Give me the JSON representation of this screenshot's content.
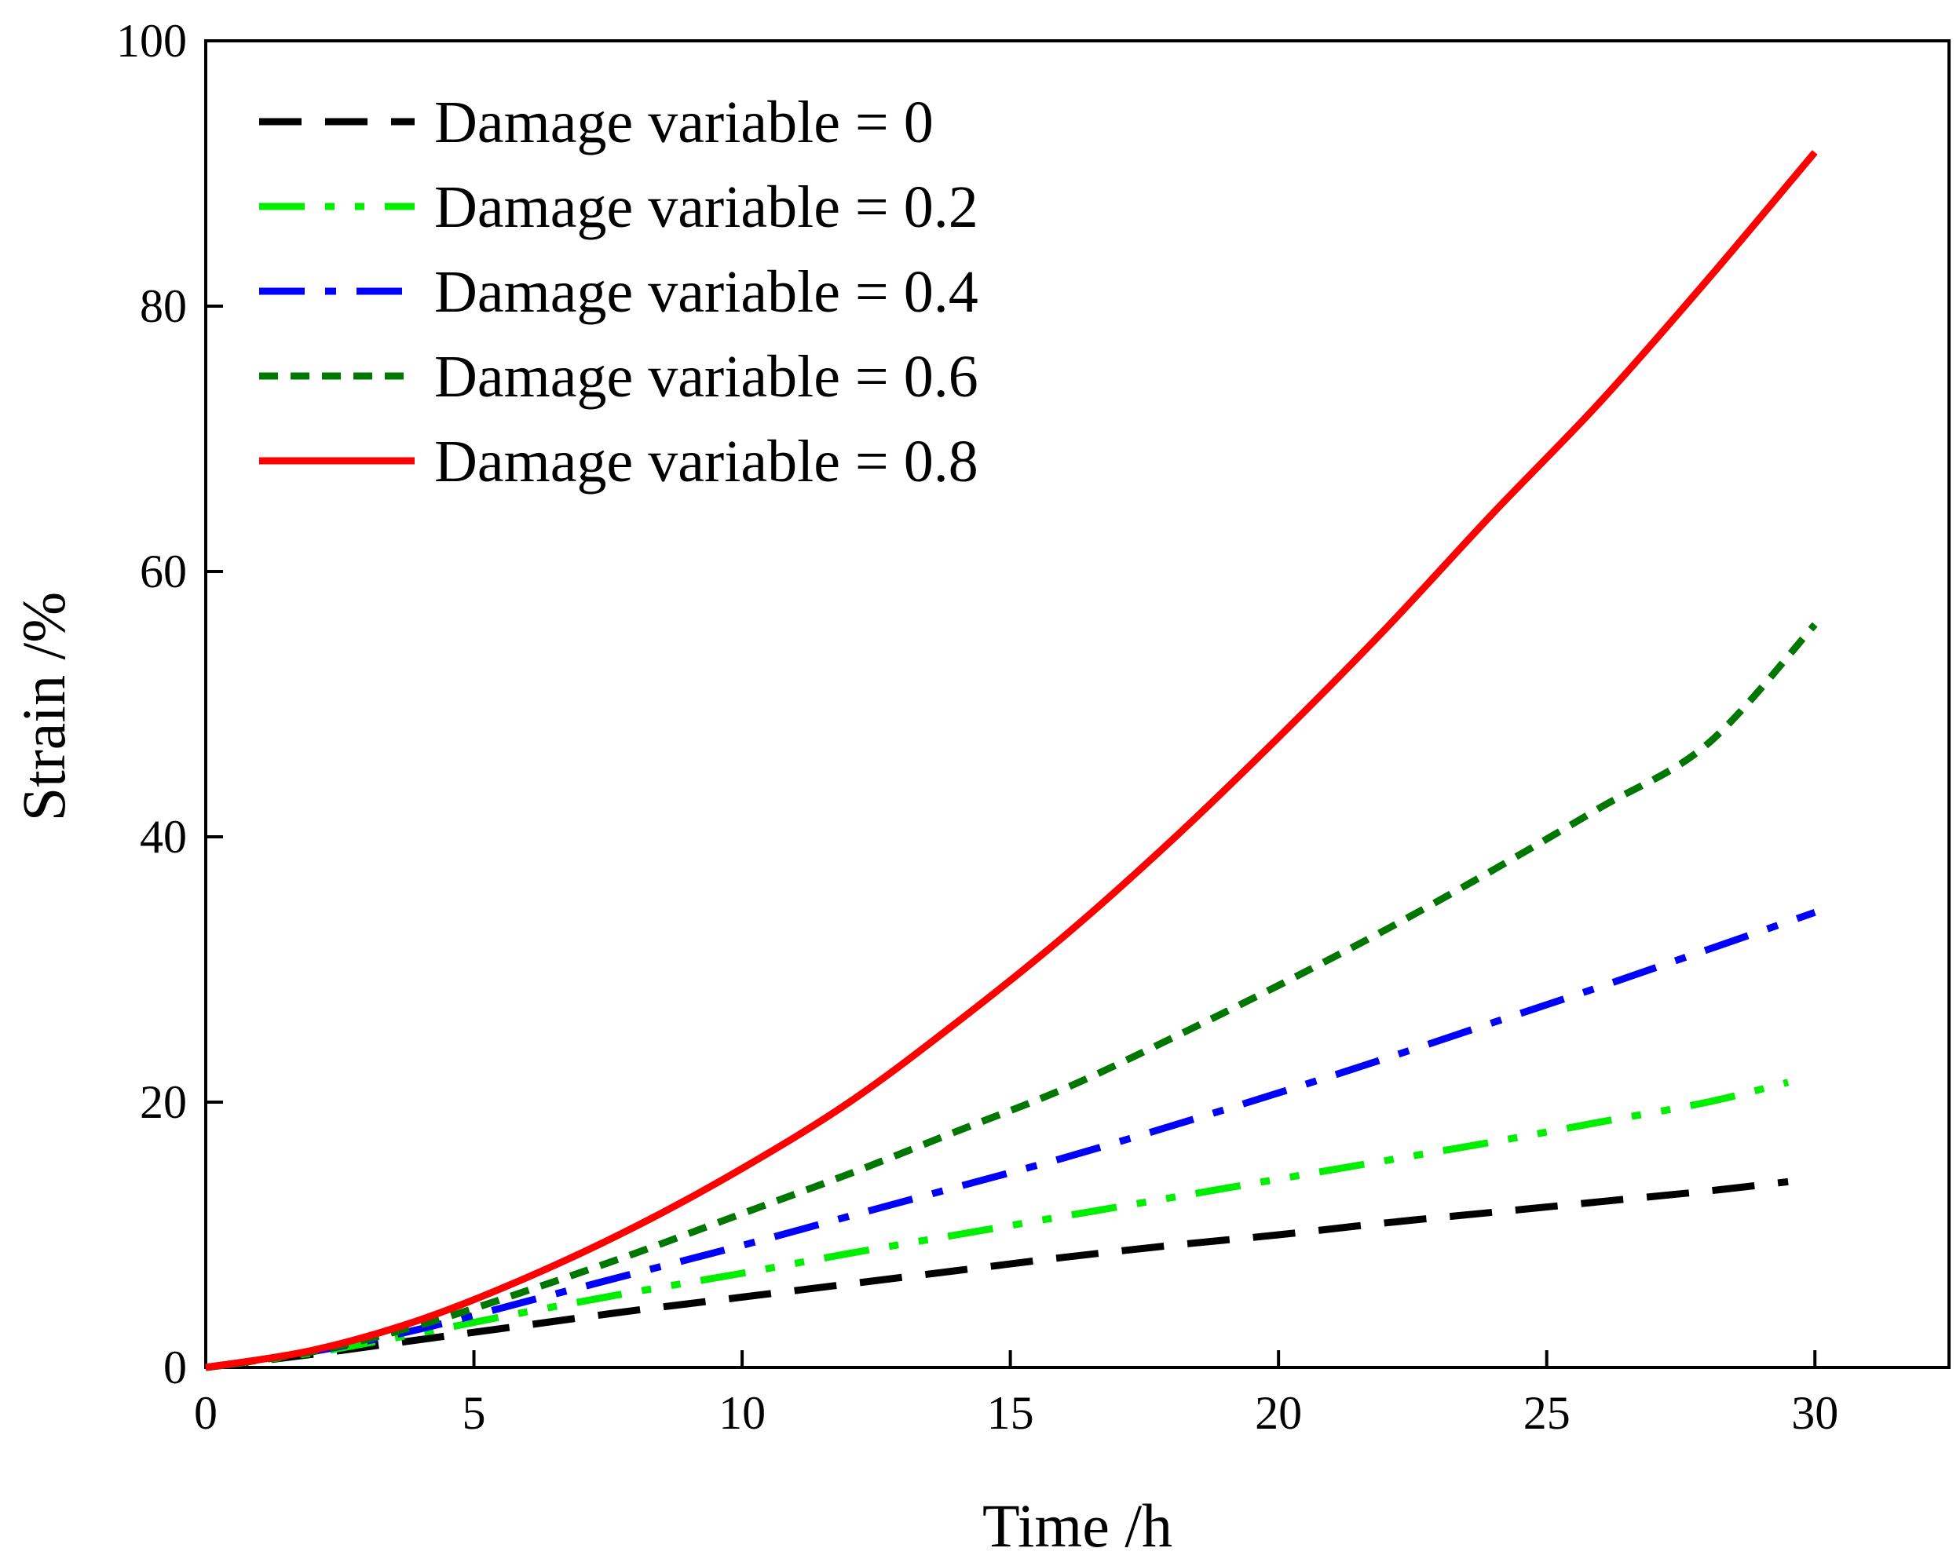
{
  "chart_data": {
    "type": "line",
    "title": "",
    "xlabel": "Time /h",
    "ylabel": "Strain /%",
    "xlim": [
      0,
      32.5
    ],
    "ylim": [
      0,
      100
    ],
    "xticks": [
      0,
      5,
      10,
      15,
      20,
      25,
      30
    ],
    "yticks": [
      0,
      20,
      40,
      60,
      80,
      100
    ],
    "xtick_labels": [
      "0",
      "5",
      "10",
      "15",
      "20",
      "25",
      "30"
    ],
    "ytick_labels": [
      "0",
      "20",
      "40",
      "60",
      "80",
      "100"
    ],
    "grid": false,
    "legend_position": "top-left",
    "series": [
      {
        "name": "Damage variable = 0",
        "color": "#000000",
        "dash": "dashed",
        "x": [
          0,
          2,
          4,
          6,
          8,
          10,
          12,
          14,
          16,
          18,
          20,
          22,
          24,
          26,
          28,
          29.5
        ],
        "y": [
          0,
          1.0,
          2.1,
          3.2,
          4.3,
          5.3,
          6.3,
          7.3,
          8.3,
          9.2,
          10.0,
          10.9,
          11.7,
          12.5,
          13.3,
          14.0
        ]
      },
      {
        "name": "Damage variable = 0.2",
        "color": "#00ee00",
        "dash": "dash-dot-dot",
        "x": [
          0,
          2,
          4,
          6,
          8,
          10,
          12,
          14,
          16,
          18,
          20,
          22,
          24,
          26,
          28,
          29.5
        ],
        "y": [
          0,
          1.1,
          2.6,
          4.2,
          5.7,
          7.1,
          8.6,
          10.0,
          11.4,
          12.8,
          14.2,
          15.6,
          17.0,
          18.5,
          20.0,
          21.5
        ]
      },
      {
        "name": "Damage variable = 0.4",
        "color": "#0000ff",
        "dash": "dash-dot",
        "x": [
          0,
          2,
          4,
          6,
          8,
          10,
          12,
          14,
          16,
          18,
          20,
          22,
          24,
          26,
          28,
          30
        ],
        "y": [
          0,
          1.2,
          2.9,
          5.0,
          7.1,
          9.2,
          11.4,
          13.6,
          15.8,
          18.2,
          20.7,
          23.3,
          26.0,
          28.7,
          31.5,
          34.3
        ]
      },
      {
        "name": "Damage variable = 0.6",
        "color": "#007700",
        "dash": "short-dashed",
        "x": [
          0,
          2,
          4,
          6,
          8,
          10,
          12,
          14,
          16,
          18,
          20,
          22,
          24,
          26,
          28,
          30
        ],
        "y": [
          0,
          1.2,
          3.2,
          5.8,
          8.6,
          11.6,
          14.6,
          17.8,
          21.0,
          24.8,
          28.8,
          33.0,
          37.5,
          42.2,
          47.0,
          56.0
        ]
      },
      {
        "name": "Damage variable = 0.8",
        "color": "#ff0000",
        "dash": "solid",
        "x": [
          0,
          2,
          4,
          6,
          8,
          10,
          12,
          14,
          16,
          18,
          20,
          22,
          24,
          26,
          28,
          30
        ],
        "y": [
          0,
          1.3,
          3.6,
          6.8,
          10.6,
          15.0,
          20.0,
          26.0,
          32.5,
          39.7,
          47.5,
          55.7,
          64.4,
          72.8,
          82.0,
          91.6
        ]
      }
    ]
  }
}
